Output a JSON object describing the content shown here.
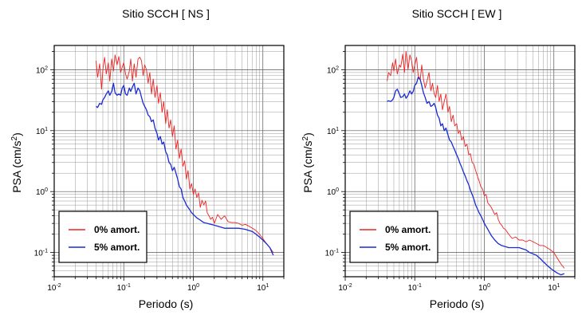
{
  "chart_data": [
    {
      "type": "line",
      "title": "Sitio SCCH [ NS ]",
      "xlabel": "Periodo (s)",
      "ylabel": "PSA (cm/s²)",
      "xscale": "log",
      "yscale": "log",
      "xlim": [
        0.01,
        20
      ],
      "ylim": [
        0.04,
        250
      ],
      "grid": true,
      "legend_placement": "bottom-left",
      "xticks": [
        {
          "value": 0.01,
          "base": "10",
          "exp": "-2"
        },
        {
          "value": 0.1,
          "base": "10",
          "exp": "-1"
        },
        {
          "value": 1,
          "base": "10",
          "exp": "0"
        },
        {
          "value": 10,
          "base": "10",
          "exp": "1"
        }
      ],
      "yticks": [
        {
          "value": 0.1,
          "base": "10",
          "exp": "-1"
        },
        {
          "value": 1,
          "base": "10",
          "exp": "0"
        },
        {
          "value": 10,
          "base": "10",
          "exp": "1"
        },
        {
          "value": 100,
          "base": "10",
          "exp": "2"
        }
      ],
      "series": [
        {
          "name": "0% amort.",
          "color": "#ee2222",
          "x": [
            0.04,
            0.042,
            0.045,
            0.048,
            0.05,
            0.053,
            0.056,
            0.06,
            0.063,
            0.067,
            0.071,
            0.075,
            0.08,
            0.085,
            0.09,
            0.095,
            0.1,
            0.106,
            0.112,
            0.12,
            0.126,
            0.133,
            0.141,
            0.15,
            0.16,
            0.17,
            0.18,
            0.19,
            0.2,
            0.212,
            0.224,
            0.237,
            0.25,
            0.265,
            0.281,
            0.3,
            0.316,
            0.335,
            0.355,
            0.376,
            0.4,
            0.422,
            0.447,
            0.473,
            0.501,
            0.531,
            0.562,
            0.596,
            0.631,
            0.668,
            0.708,
            0.75,
            0.794,
            0.841,
            0.891,
            0.944,
            1.0,
            1.059,
            1.122,
            1.189,
            1.259,
            1.334,
            1.413,
            1.5,
            1.585,
            1.679,
            1.778,
            1.884,
            2.0,
            2.239,
            2.512,
            2.818,
            3.162,
            3.548,
            3.981,
            4.467,
            5.012,
            5.623,
            6.31,
            7.08,
            7.943,
            8.913,
            10.0,
            11.22,
            12.59,
            14.13
          ],
          "y": [
            140,
            75,
            125,
            48,
            100,
            160,
            85,
            130,
            65,
            150,
            95,
            175,
            120,
            165,
            90,
            110,
            130,
            85,
            70,
            95,
            150,
            65,
            125,
            75,
            150,
            160,
            140,
            80,
            120,
            100,
            60,
            90,
            40,
            70,
            35,
            55,
            28,
            42,
            20,
            30,
            13,
            22,
            11,
            15,
            8,
            12,
            5,
            7,
            3.5,
            5,
            2.6,
            3.2,
            1.6,
            2.2,
            1.1,
            1.35,
            0.9,
            1.1,
            0.8,
            0.95,
            0.55,
            0.72,
            0.6,
            0.7,
            0.45,
            0.4,
            0.35,
            0.38,
            0.3,
            0.42,
            0.35,
            0.4,
            0.32,
            0.31,
            0.31,
            0.3,
            0.28,
            0.29,
            0.27,
            0.25,
            0.23,
            0.2,
            0.17,
            0.14,
            0.12,
            0.1
          ]
        },
        {
          "name": "5% amort.",
          "color": "#1a2ad6",
          "x": [
            0.04,
            0.042,
            0.045,
            0.048,
            0.05,
            0.053,
            0.056,
            0.06,
            0.063,
            0.067,
            0.071,
            0.075,
            0.08,
            0.085,
            0.09,
            0.095,
            0.1,
            0.106,
            0.112,
            0.12,
            0.126,
            0.133,
            0.141,
            0.15,
            0.16,
            0.17,
            0.18,
            0.19,
            0.2,
            0.212,
            0.224,
            0.237,
            0.25,
            0.265,
            0.281,
            0.3,
            0.316,
            0.335,
            0.355,
            0.376,
            0.4,
            0.422,
            0.447,
            0.473,
            0.501,
            0.531,
            0.562,
            0.596,
            0.631,
            0.668,
            0.708,
            0.75,
            0.794,
            0.841,
            0.891,
            0.944,
            1.0,
            1.122,
            1.259,
            1.413,
            1.585,
            1.778,
            2.0,
            2.239,
            2.512,
            2.818,
            3.162,
            3.548,
            3.981,
            4.467,
            5.012,
            5.623,
            6.31,
            7.08,
            7.943,
            8.913,
            10.0,
            11.22,
            12.59,
            14.13
          ],
          "y": [
            25,
            24,
            28,
            27,
            32,
            35,
            40,
            45,
            38,
            44,
            60,
            42,
            38,
            40,
            38,
            50,
            55,
            40,
            38,
            50,
            44,
            52,
            60,
            40,
            50,
            45,
            35,
            28,
            25,
            22,
            18,
            17,
            14,
            15,
            11,
            9,
            7,
            8,
            6,
            6.5,
            4.5,
            4,
            3,
            2.8,
            2.2,
            2.5,
            2,
            1.6,
            1.2,
            1.1,
            0.8,
            0.7,
            0.6,
            0.55,
            0.5,
            0.45,
            0.42,
            0.37,
            0.34,
            0.31,
            0.3,
            0.29,
            0.28,
            0.27,
            0.26,
            0.25,
            0.25,
            0.25,
            0.25,
            0.25,
            0.245,
            0.24,
            0.23,
            0.22,
            0.2,
            0.18,
            0.16,
            0.14,
            0.12,
            0.09
          ]
        }
      ]
    },
    {
      "type": "line",
      "title": "Sitio SCCH [ EW ]",
      "xlabel": "Periodo (s)",
      "ylabel": "PSA (cm/s²)",
      "xscale": "log",
      "yscale": "log",
      "xlim": [
        0.01,
        20
      ],
      "ylim": [
        0.04,
        250
      ],
      "grid": true,
      "legend_placement": "bottom-left",
      "xticks": [
        {
          "value": 0.01,
          "base": "10",
          "exp": "-2"
        },
        {
          "value": 0.1,
          "base": "10",
          "exp": "-1"
        },
        {
          "value": 1,
          "base": "10",
          "exp": "0"
        },
        {
          "value": 10,
          "base": "10",
          "exp": "1"
        }
      ],
      "yticks": [
        {
          "value": 0.1,
          "base": "10",
          "exp": "-1"
        },
        {
          "value": 1,
          "base": "10",
          "exp": "0"
        },
        {
          "value": 10,
          "base": "10",
          "exp": "1"
        },
        {
          "value": 100,
          "base": "10",
          "exp": "2"
        }
      ],
      "series": [
        {
          "name": "0% amort.",
          "color": "#ee2222",
          "x": [
            0.04,
            0.042,
            0.045,
            0.048,
            0.05,
            0.053,
            0.056,
            0.06,
            0.063,
            0.067,
            0.071,
            0.075,
            0.08,
            0.085,
            0.09,
            0.095,
            0.1,
            0.106,
            0.112,
            0.12,
            0.126,
            0.133,
            0.141,
            0.15,
            0.16,
            0.17,
            0.18,
            0.19,
            0.2,
            0.212,
            0.224,
            0.237,
            0.25,
            0.265,
            0.281,
            0.3,
            0.316,
            0.335,
            0.355,
            0.376,
            0.4,
            0.422,
            0.447,
            0.473,
            0.501,
            0.531,
            0.562,
            0.596,
            0.631,
            0.668,
            0.708,
            0.75,
            0.794,
            0.841,
            0.891,
            0.944,
            1.0,
            1.059,
            1.122,
            1.189,
            1.259,
            1.334,
            1.413,
            1.5,
            1.585,
            1.679,
            1.778,
            1.884,
            2.0,
            2.239,
            2.512,
            2.818,
            3.162,
            3.548,
            3.981,
            4.467,
            5.012,
            5.623,
            6.31,
            7.08,
            7.943,
            8.913,
            10.0,
            11.22,
            12.59,
            14.13
          ],
          "y": [
            65,
            90,
            80,
            130,
            95,
            150,
            85,
            120,
            110,
            180,
            90,
            200,
            100,
            175,
            140,
            90,
            120,
            160,
            80,
            70,
            120,
            70,
            50,
            65,
            90,
            45,
            60,
            40,
            35,
            55,
            30,
            40,
            22,
            30,
            40,
            20,
            25,
            14,
            18,
            12,
            13,
            9,
            10,
            7,
            8,
            5.5,
            6,
            4,
            4.2,
            3,
            2.8,
            2.2,
            1.8,
            1.5,
            1.2,
            1.1,
            0.85,
            0.9,
            0.65,
            0.6,
            0.55,
            0.48,
            0.42,
            0.45,
            0.35,
            0.3,
            0.28,
            0.25,
            0.24,
            0.2,
            0.17,
            0.18,
            0.16,
            0.16,
            0.15,
            0.16,
            0.15,
            0.14,
            0.13,
            0.13,
            0.12,
            0.11,
            0.1,
            0.08,
            0.065,
            0.055
          ]
        },
        {
          "name": "5% amort.",
          "color": "#1a2ad6",
          "x": [
            0.04,
            0.042,
            0.045,
            0.048,
            0.05,
            0.053,
            0.056,
            0.06,
            0.063,
            0.067,
            0.071,
            0.075,
            0.08,
            0.085,
            0.09,
            0.095,
            0.1,
            0.106,
            0.112,
            0.12,
            0.126,
            0.133,
            0.141,
            0.15,
            0.16,
            0.17,
            0.18,
            0.19,
            0.2,
            0.212,
            0.224,
            0.237,
            0.25,
            0.265,
            0.281,
            0.3,
            0.316,
            0.335,
            0.355,
            0.376,
            0.4,
            0.422,
            0.447,
            0.473,
            0.501,
            0.531,
            0.562,
            0.596,
            0.631,
            0.668,
            0.708,
            0.75,
            0.794,
            0.841,
            0.891,
            0.944,
            1.0,
            1.122,
            1.259,
            1.413,
            1.585,
            1.778,
            2.0,
            2.239,
            2.512,
            2.818,
            3.162,
            3.548,
            3.981,
            4.467,
            5.012,
            5.623,
            6.31,
            7.08,
            7.943,
            8.913,
            10.0,
            11.22,
            12.59,
            14.13
          ],
          "y": [
            30,
            31,
            30,
            32,
            35,
            45,
            48,
            40,
            35,
            36,
            40,
            34,
            38,
            45,
            40,
            44,
            55,
            60,
            75,
            68,
            55,
            42,
            35,
            28,
            30,
            25,
            26,
            28,
            24,
            18,
            16,
            12,
            13,
            10,
            11,
            8.5,
            7,
            6.5,
            5.5,
            4.8,
            4,
            3.5,
            2.9,
            2.5,
            2.1,
            1.8,
            1.5,
            1.3,
            1.05,
            0.9,
            0.75,
            0.6,
            0.52,
            0.45,
            0.4,
            0.35,
            0.3,
            0.24,
            0.19,
            0.16,
            0.14,
            0.13,
            0.125,
            0.12,
            0.12,
            0.12,
            0.12,
            0.115,
            0.11,
            0.1,
            0.095,
            0.09,
            0.08,
            0.07,
            0.062,
            0.055,
            0.05,
            0.046,
            0.043,
            0.045
          ]
        }
      ]
    }
  ]
}
